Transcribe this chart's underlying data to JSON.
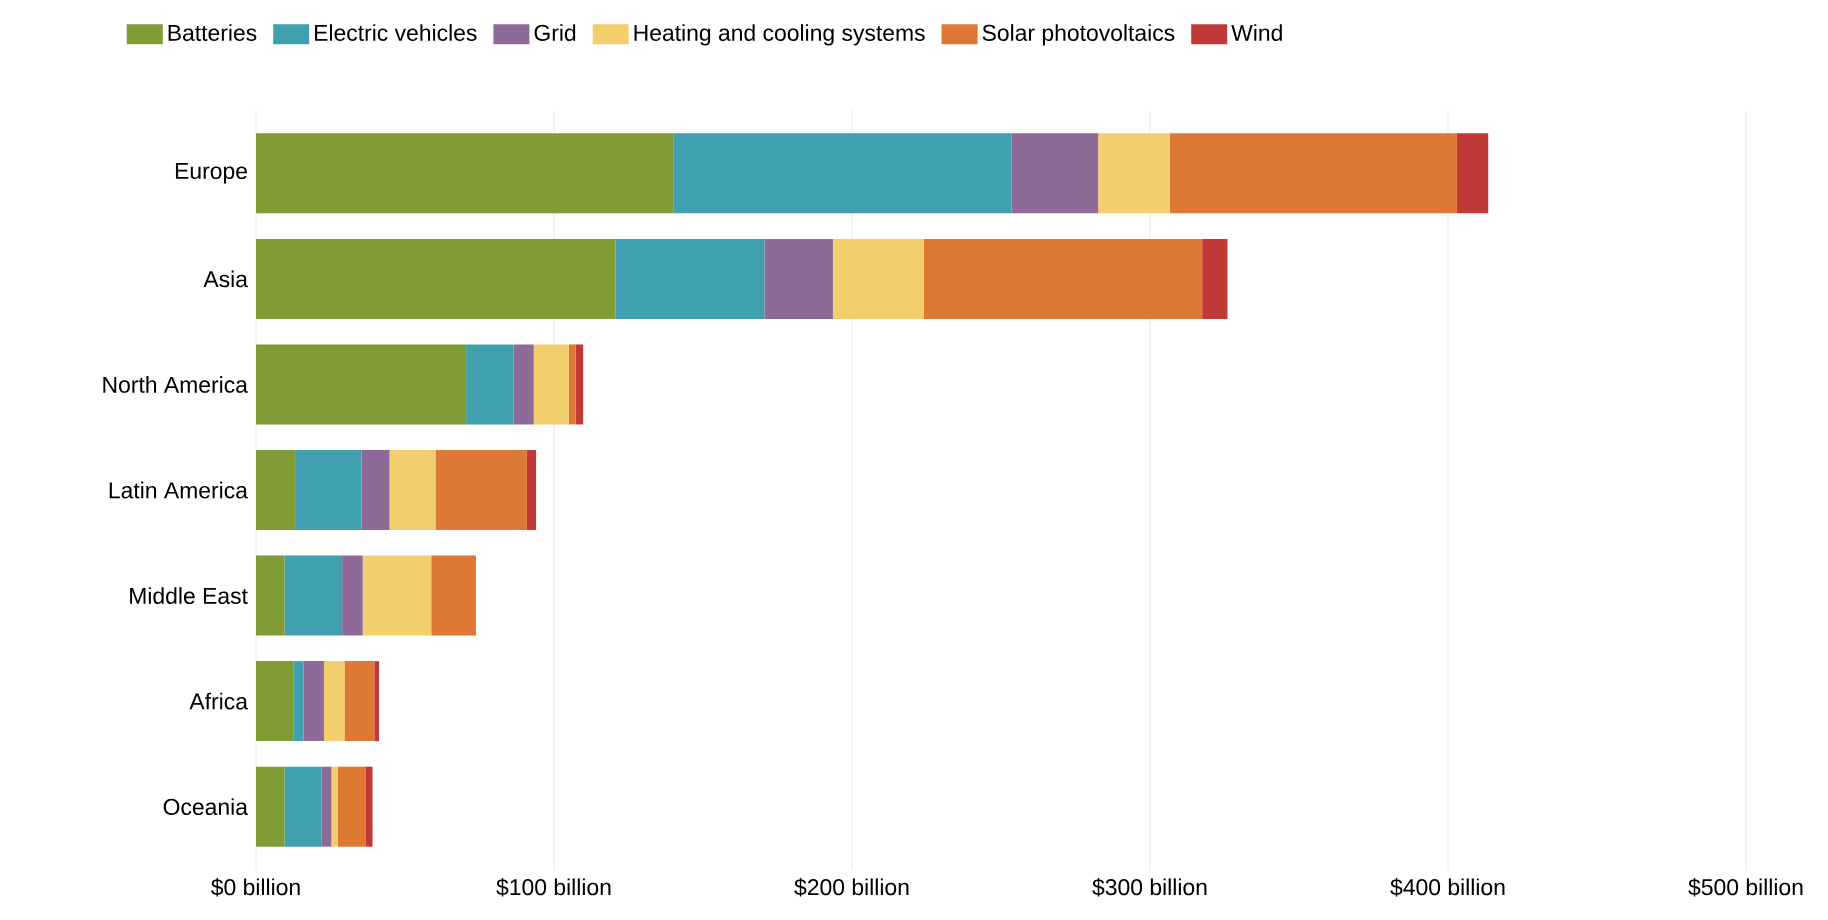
{
  "chart_data": {
    "type": "bar",
    "orientation": "horizontal",
    "stacked": true,
    "categories": [
      "Europe",
      "Asia",
      "North America",
      "Latin America",
      "Middle East",
      "Africa",
      "Oceania"
    ],
    "series": [
      {
        "name": "Batteries",
        "color": "#7f9c37",
        "values": [
          140,
          120.6,
          70.5,
          13.4,
          9.6,
          12.5,
          9.6
        ]
      },
      {
        "name": "Electric vehicles",
        "color": "#41a0b0",
        "values": [
          113.6,
          50,
          16,
          22,
          19.3,
          3.4,
          12.3
        ]
      },
      {
        "name": "Grid",
        "color": "#8e6a99",
        "values": [
          29,
          23,
          6.7,
          9.4,
          6.9,
          6.9,
          3.4
        ]
      },
      {
        "name": "Heating and cooling systems",
        "color": "#f2cf6c",
        "values": [
          24,
          30.5,
          11.7,
          15.4,
          23,
          6.9,
          2.2
        ]
      },
      {
        "name": "Solar photovoltaics",
        "color": "#de7835",
        "values": [
          96.4,
          93.4,
          2.4,
          30.7,
          15,
          10,
          9.2
        ]
      },
      {
        "name": "Wind",
        "color": "#bf3a37",
        "values": [
          10.5,
          8.5,
          2.5,
          3.1,
          0,
          1.6,
          2.4
        ]
      }
    ],
    "xlim": [
      0,
      500
    ],
    "xticks": [
      {
        "value": 0,
        "label": "$0 billion"
      },
      {
        "value": 100,
        "label": "$100 billion"
      },
      {
        "value": 200,
        "label": "$200 billion"
      },
      {
        "value": 300,
        "label": "$300 billion"
      },
      {
        "value": 400,
        "label": "$400 billion"
      },
      {
        "value": 500,
        "label": "$500 billion"
      }
    ],
    "grid": "x",
    "legend": "top left"
  }
}
